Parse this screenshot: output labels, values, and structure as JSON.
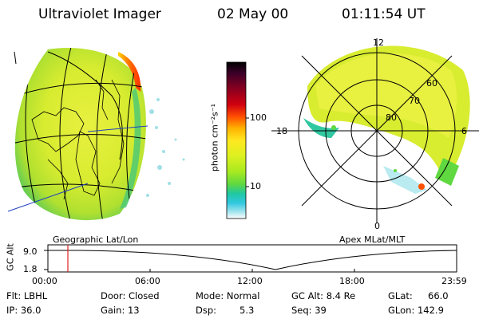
{
  "header": {
    "instrument": "Ultraviolet Imager",
    "date": "02 May 00",
    "time": "01:11:54 UT"
  },
  "colorbar": {
    "unit_label": "photon cm⁻²s⁻¹",
    "ticks": [
      "100",
      "10"
    ],
    "colors": [
      "#000000",
      "#3a0028",
      "#8a0020",
      "#d00010",
      "#ff5000",
      "#ffb000",
      "#ffe820",
      "#dcf020",
      "#a8ea20",
      "#60d840",
      "#20c8a0",
      "#30c8e0",
      "#a8e6ee",
      "#ffffff"
    ]
  },
  "geo_panel": {
    "label": "Geographic Lat/Lon"
  },
  "polar_panel": {
    "label": "Apex MLat/MLT",
    "mlt_labels": {
      "top": "12",
      "left": "18",
      "right": "6",
      "bottom": "0"
    },
    "lat_labels": [
      "60",
      "70",
      "80"
    ]
  },
  "altitude_plot": {
    "ylabel": "GC Alt",
    "yticks": [
      "9.0",
      "1.8"
    ],
    "xticks": [
      "00:00",
      "06:00",
      "12:00",
      "18:00",
      "23:59"
    ],
    "current_marker_time": "01:11"
  },
  "status": {
    "flt": "Flt: LBHL",
    "ip": "IP: 36.0",
    "door": "Door: Closed",
    "gain": "Gain: 13",
    "mode": "Mode: Normal",
    "dsp": "Dsp:",
    "dsp_value": "5.3",
    "gc_alt": "GC Alt: 8.4 Re",
    "seq": "Seq: 39",
    "glat": "GLat:",
    "glat_value": "66.0",
    "glon": "GLon: 142.9"
  }
}
